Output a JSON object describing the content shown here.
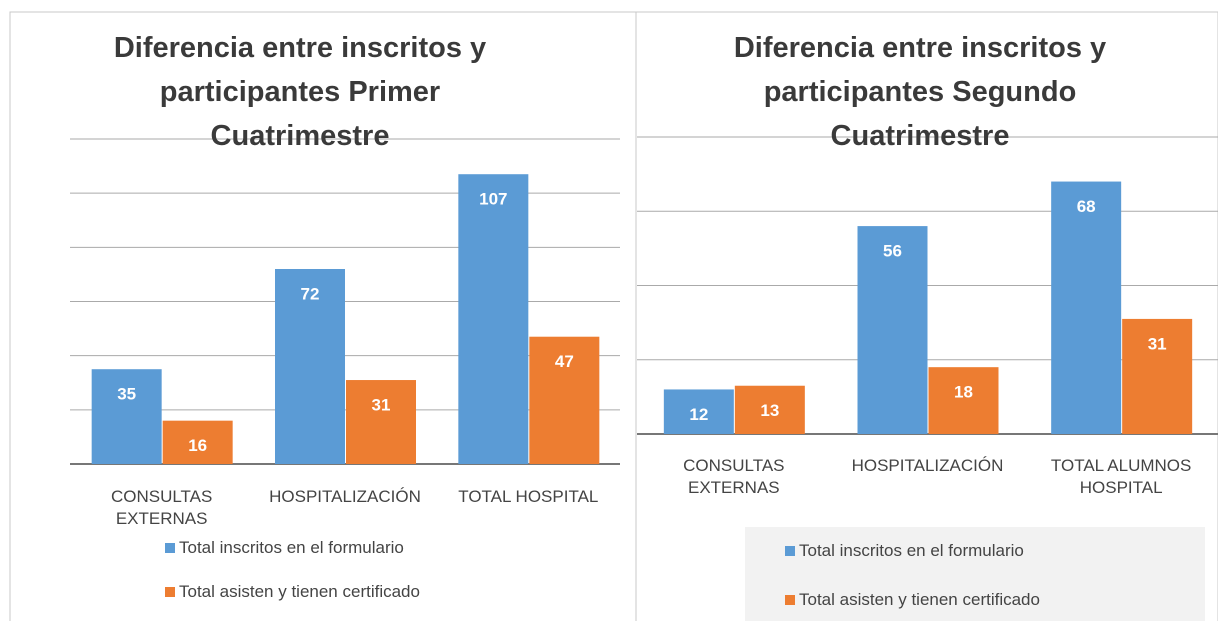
{
  "chart_data": [
    {
      "type": "bar",
      "title": "Diferencia entre inscritos y participantes Primer Cuatrimestre",
      "categories": [
        "CONSULTAS EXTERNAS",
        "HOSPITALIZACIÓN",
        "TOTAL HOSPITAL"
      ],
      "series": [
        {
          "name": "Total  inscritos en el formulario",
          "color": "#5b9bd5",
          "values": [
            35,
            72,
            107
          ]
        },
        {
          "name": "Total asisten y tienen certificado",
          "color": "#ed7d31",
          "values": [
            16,
            31,
            47
          ]
        }
      ],
      "ylim": [
        0,
        120
      ],
      "yticks": [
        0,
        20,
        40,
        60,
        80,
        100,
        120
      ],
      "grid": true
    },
    {
      "type": "bar",
      "title": "Diferencia entre inscritos y participantes Segundo Cuatrimestre",
      "categories": [
        "CONSULTAS EXTERNAS",
        "HOSPITALIZACIÓN",
        "TOTAL ALUMNOS HOSPITAL"
      ],
      "series": [
        {
          "name": "Total  inscritos en el formulario",
          "color": "#5b9bd5",
          "values": [
            12,
            56,
            68
          ]
        },
        {
          "name": "Total asisten y tienen certificado",
          "color": "#ed7d31",
          "values": [
            13,
            18,
            31
          ]
        }
      ],
      "ylim": [
        0,
        80
      ],
      "yticks": [
        0,
        20,
        40,
        60,
        80
      ],
      "grid": true
    }
  ]
}
